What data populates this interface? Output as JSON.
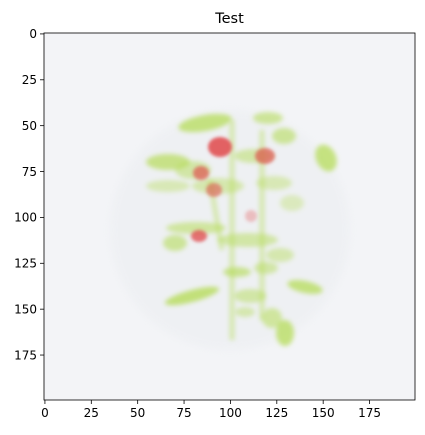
{
  "figure": {
    "title": "Test",
    "x_ticks": [
      "0",
      "25",
      "50",
      "75",
      "100",
      "125",
      "150",
      "175"
    ],
    "y_ticks": [
      "0",
      "25",
      "50",
      "75",
      "100",
      "125",
      "150",
      "175"
    ],
    "image_extent": [
      0,
      200
    ],
    "background_color": "#f3f4f7",
    "foliage_color": "#b6dc5a",
    "flower_color": "#e0484a"
  }
}
